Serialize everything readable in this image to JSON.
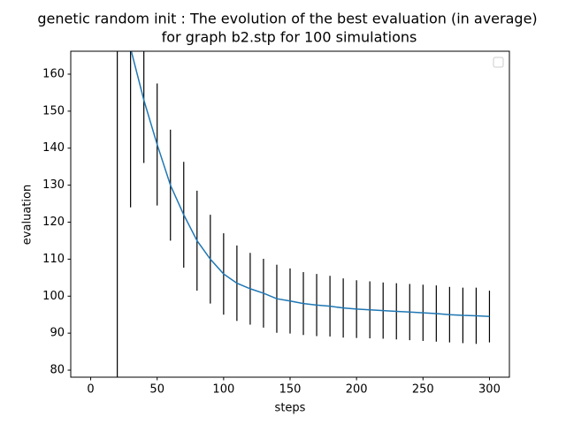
{
  "chart_data": {
    "type": "line",
    "title": [
      "genetic random init : The evolution of the best evaluation (in average)",
      "for graph b2.stp for 100 simulations"
    ],
    "x_label": "steps",
    "y_label": "evaluation",
    "x": [
      20,
      30,
      40,
      50,
      60,
      70,
      80,
      90,
      100,
      110,
      120,
      130,
      140,
      150,
      160,
      170,
      180,
      190,
      200,
      210,
      220,
      230,
      240,
      250,
      260,
      270,
      280,
      290,
      300
    ],
    "series": [
      {
        "color": "#1f77b4",
        "values": [
          200,
          167,
          153,
          141,
          130,
          122,
          115,
          110,
          106,
          103.5,
          102,
          100.8,
          99.3,
          98.7,
          98,
          97.6,
          97.3,
          96.8,
          96.5,
          96.3,
          96.1,
          95.9,
          95.7,
          95.5,
          95.3,
          95,
          94.8,
          94.7,
          94.5
        ],
        "errors": [
          125,
          43,
          17,
          16.5,
          15,
          14.3,
          13.5,
          12,
          11,
          10.2,
          9.7,
          9.3,
          9.2,
          8.8,
          8.5,
          8.4,
          8.2,
          8,
          7.8,
          7.7,
          7.6,
          7.6,
          7.6,
          7.6,
          7.6,
          7.5,
          7.5,
          7.6,
          7
        ],
        "error_color": "#000000"
      }
    ],
    "xlim": [
      -15,
      315
    ],
    "ylim": [
      78.1,
      166.2
    ],
    "xticks": [
      0,
      50,
      100,
      150,
      200,
      250,
      300
    ],
    "yticks": [
      80,
      90,
      100,
      110,
      120,
      130,
      140,
      150,
      160
    ],
    "legend": "upper right"
  }
}
